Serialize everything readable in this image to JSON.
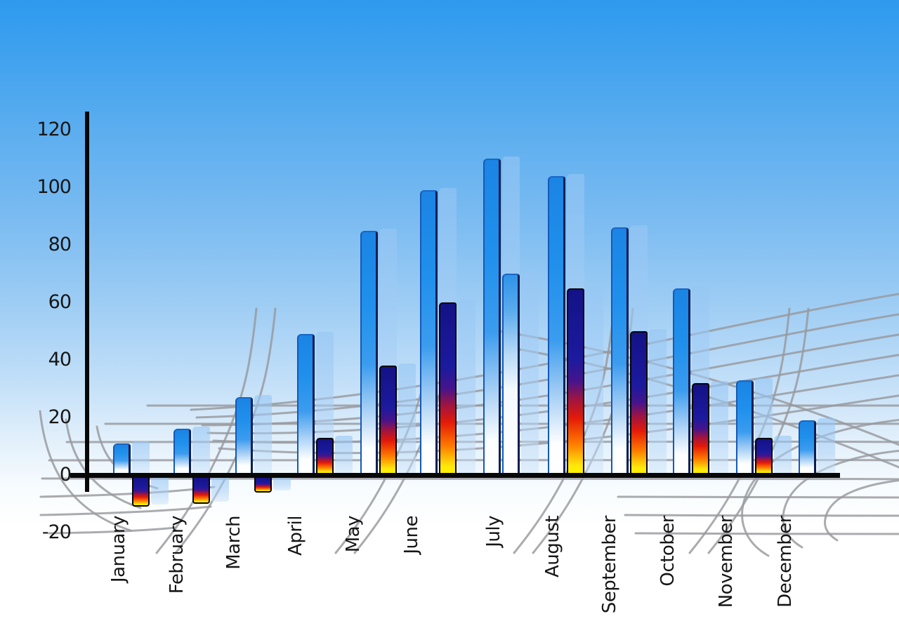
{
  "chart_data": {
    "type": "bar",
    "title": "",
    "xlabel": "",
    "ylabel": "",
    "categories": [
      "January",
      "February",
      "March",
      "April",
      "May",
      "June",
      "July",
      "August",
      "September",
      "October",
      "November",
      "December"
    ],
    "series": [
      {
        "name": "primary-blue-bars",
        "style": "blue-gradient",
        "values": [
          11,
          16,
          27,
          49,
          85,
          99,
          110,
          104,
          86,
          65,
          33,
          19
        ]
      },
      {
        "name": "secondary-gradient-bars",
        "style": "fire-gradient",
        "values": [
          -10,
          -9,
          -5,
          13,
          38,
          60,
          70,
          65,
          50,
          32,
          13,
          null
        ]
      }
    ],
    "secondary_style_overrides": {
      "July": "light-blue-gradient"
    },
    "shadow_copies": "each bar has a translucent light-blue duplicate offset to the right",
    "ylim": [
      -20,
      120
    ],
    "yticks": [
      120,
      100,
      80,
      60,
      40,
      20,
      0,
      -20
    ],
    "grid": "decorative warped gray perspective mesh in background",
    "legend": null
  },
  "colors": {
    "sky_top": "#2E9AEE",
    "sky_bottom": "#FFFFFF",
    "primary_bar_blue": "#2090EC",
    "bar_edge_dark": "#0C1F52",
    "fire_navy": "#141286",
    "fire_red": "#E31A08",
    "fire_yellow": "#FFF200",
    "shadow_bar": "rgba(165,205,245,0.55)",
    "grid_line": "#97999E",
    "axis": "#070707",
    "label_text": "#161616"
  }
}
